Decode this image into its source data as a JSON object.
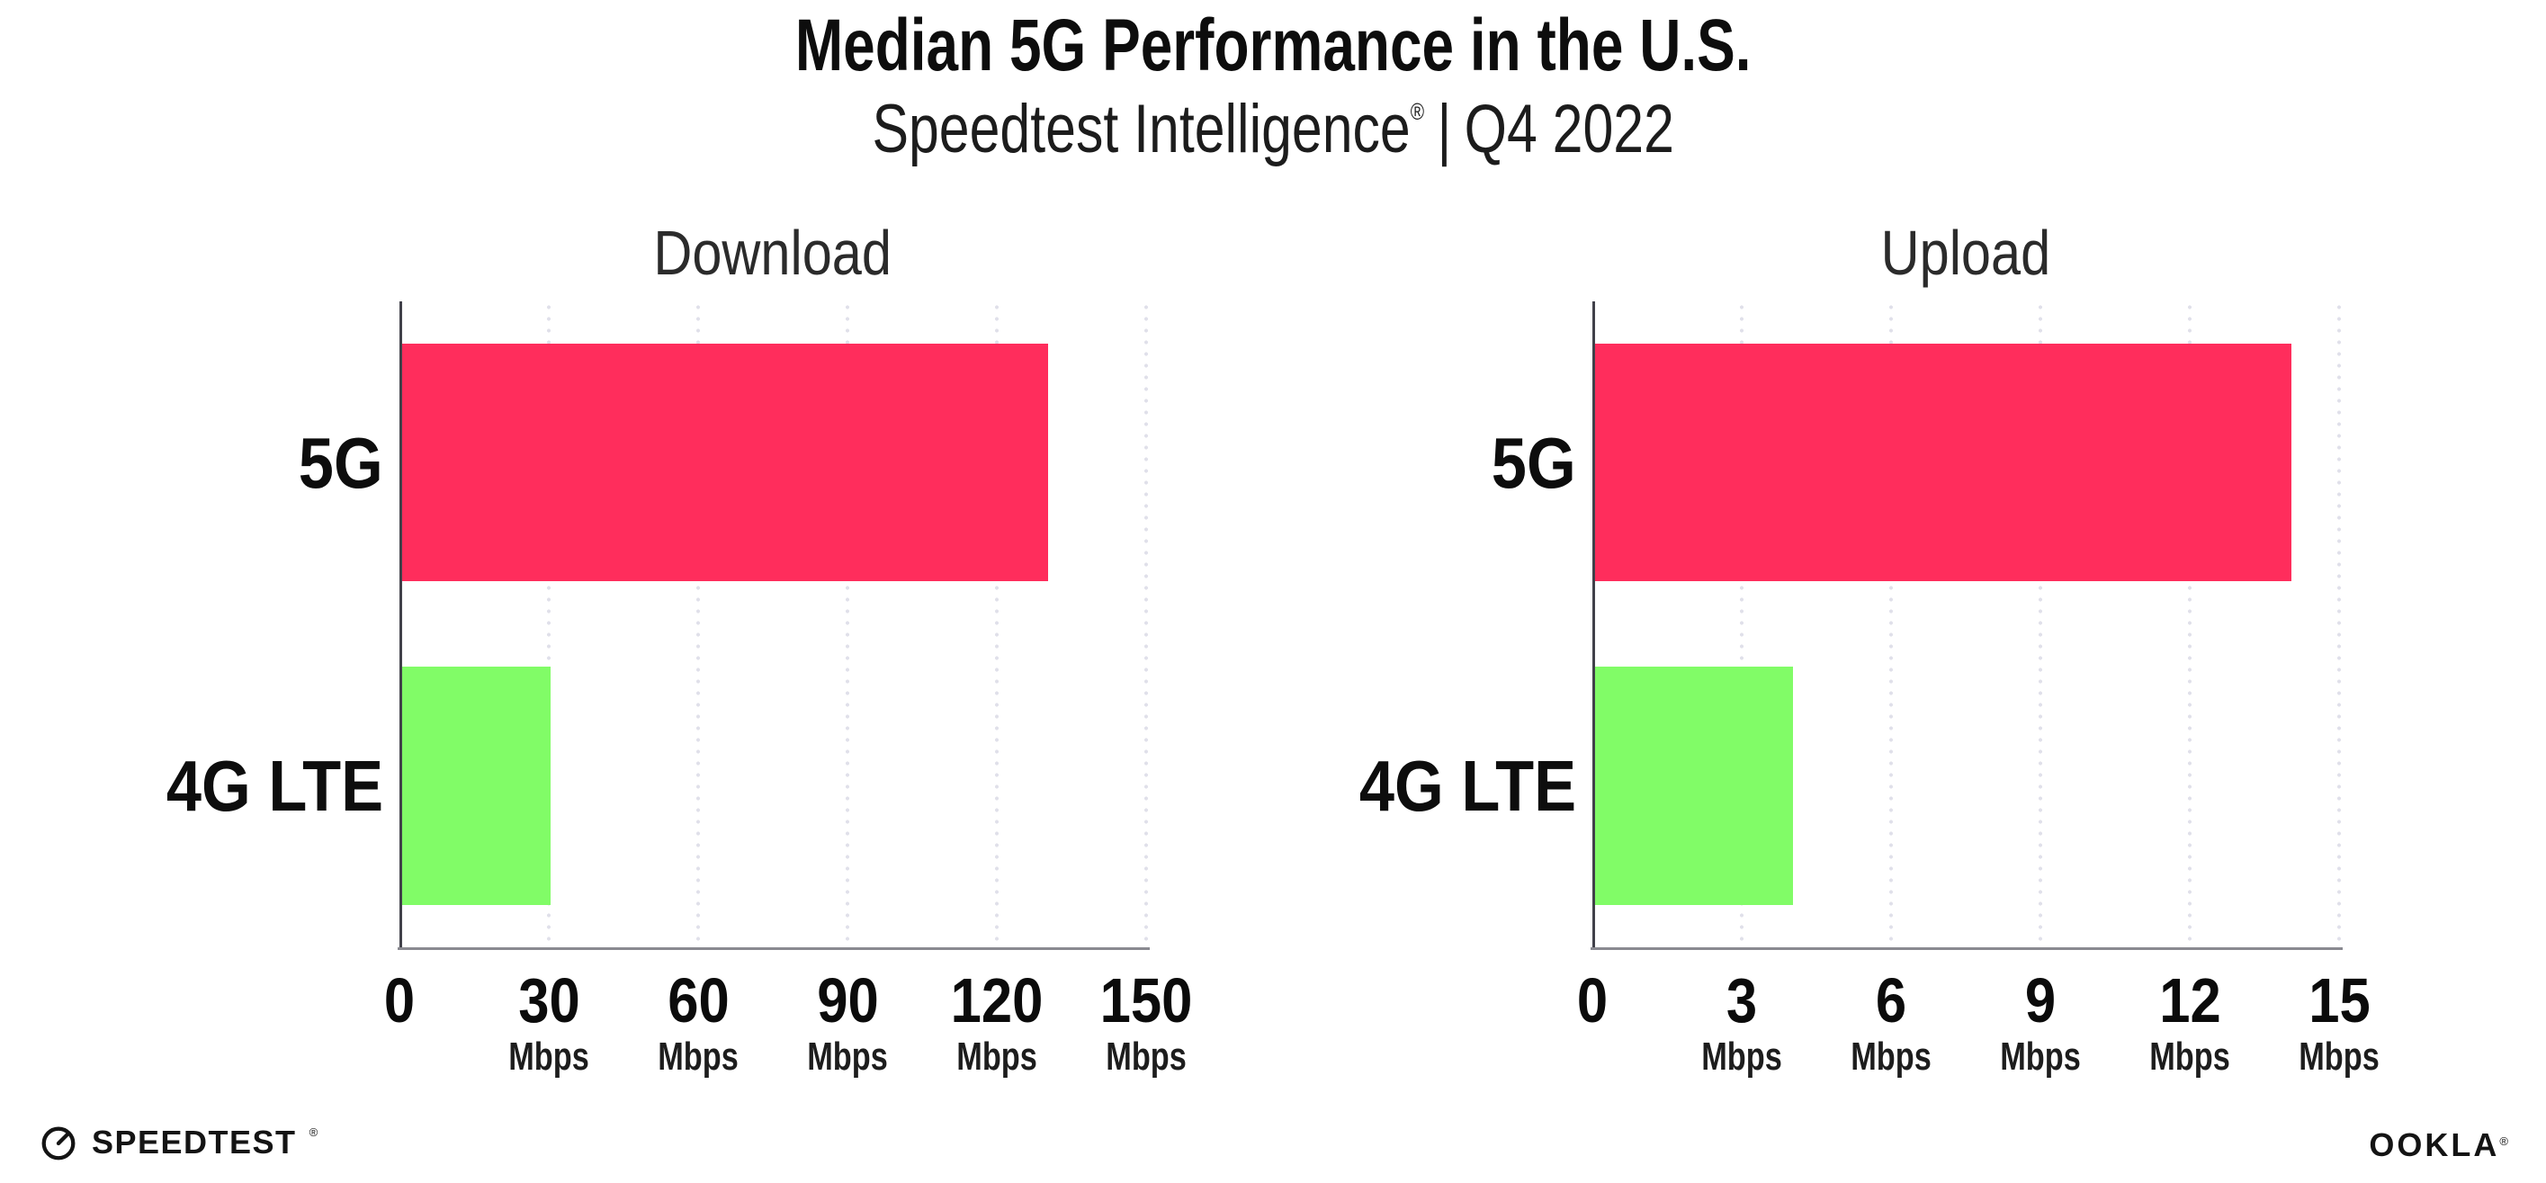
{
  "header": {
    "title": "Median 5G Performance in the U.S.",
    "subtitle_product": "Speedtest Intelligence",
    "subtitle_trademark": "®",
    "subtitle_divider": "|",
    "subtitle_period": "Q4 2022"
  },
  "chart_data": [
    {
      "type": "bar",
      "orientation": "horizontal",
      "title": "Download",
      "categories": [
        "5G",
        "4G LTE"
      ],
      "values": [
        130,
        30
      ],
      "unit": "Mbps",
      "xlim": [
        0,
        150
      ],
      "xticks": [
        0,
        30,
        60,
        90,
        120,
        150
      ],
      "bar_colors": [
        "#ff2d5c",
        "#81fc67"
      ],
      "grid": "vertical-dotted",
      "legend": "none"
    },
    {
      "type": "bar",
      "orientation": "horizontal",
      "title": "Upload",
      "categories": [
        "5G",
        "4G LTE"
      ],
      "values": [
        14,
        4
      ],
      "unit": "Mbps",
      "xlim": [
        0,
        15
      ],
      "xticks": [
        0,
        3,
        6,
        9,
        12,
        15
      ],
      "bar_colors": [
        "#ff2d5c",
        "#81fc67"
      ],
      "grid": "vertical-dotted",
      "legend": "none"
    }
  ],
  "footer": {
    "speedtest_wordmark": "SPEEDTEST",
    "speedtest_trademark": "®",
    "ookla_wordmark": "OOKLA",
    "ookla_trademark": "®"
  },
  "colors": {
    "bar_5g": "#ff2d5c",
    "bar_4g_lte": "#81fc67",
    "gridline": "#e0e0ea",
    "y_axis": "#41414a",
    "x_axis": "#8a8a91",
    "text": "#111111"
  }
}
